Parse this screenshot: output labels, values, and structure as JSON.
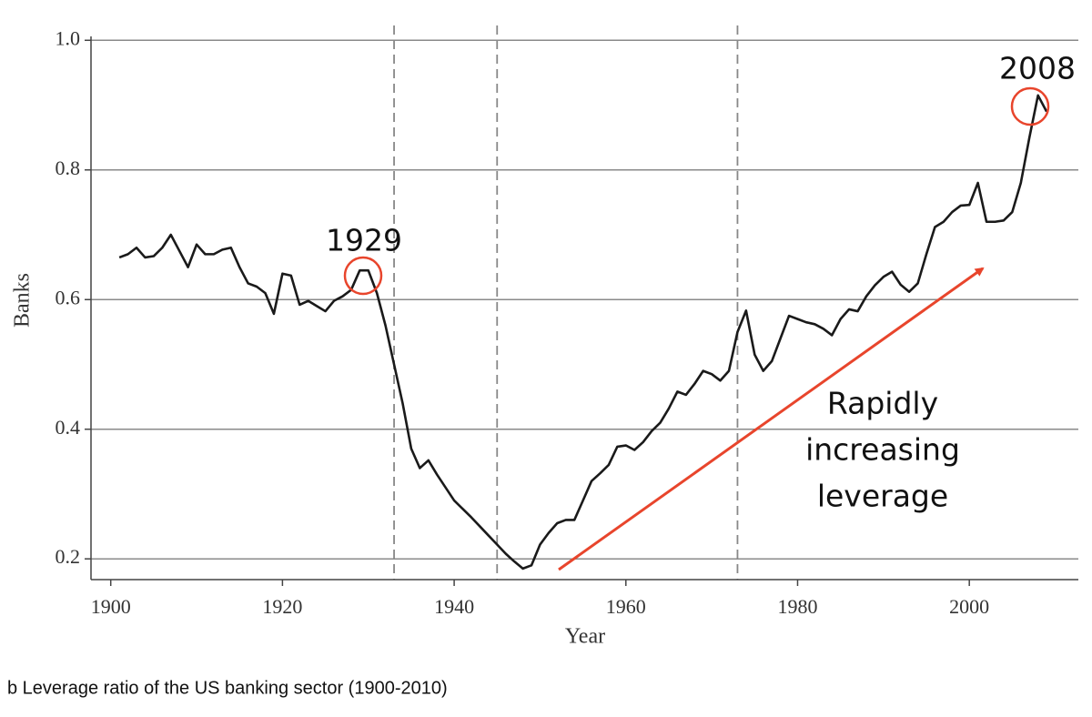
{
  "chart_data": {
    "type": "line",
    "x": [
      1901,
      1902,
      1903,
      1904,
      1905,
      1906,
      1907,
      1908,
      1909,
      1910,
      1911,
      1912,
      1913,
      1914,
      1915,
      1916,
      1917,
      1918,
      1919,
      1920,
      1921,
      1922,
      1923,
      1924,
      1925,
      1926,
      1927,
      1928,
      1929,
      1930,
      1931,
      1932,
      1933,
      1934,
      1935,
      1936,
      1937,
      1938,
      1939,
      1940,
      1941,
      1942,
      1943,
      1944,
      1945,
      1946,
      1947,
      1948,
      1949,
      1950,
      1951,
      1952,
      1953,
      1954,
      1955,
      1956,
      1957,
      1958,
      1959,
      1960,
      1961,
      1962,
      1963,
      1964,
      1965,
      1966,
      1967,
      1968,
      1969,
      1970,
      1971,
      1972,
      1973,
      1974,
      1975,
      1976,
      1977,
      1978,
      1979,
      1980,
      1981,
      1982,
      1983,
      1984,
      1985,
      1986,
      1987,
      1988,
      1989,
      1990,
      1991,
      1992,
      1993,
      1994,
      1995,
      1996,
      1997,
      1998,
      1999,
      2000,
      2001,
      2002,
      2003,
      2004,
      2005,
      2006,
      2007,
      2008,
      2009
    ],
    "values": [
      0.665,
      0.67,
      0.68,
      0.665,
      0.667,
      0.68,
      0.7,
      0.675,
      0.65,
      0.685,
      0.67,
      0.67,
      0.677,
      0.68,
      0.65,
      0.625,
      0.62,
      0.61,
      0.578,
      0.64,
      0.637,
      0.592,
      0.598,
      0.59,
      0.582,
      0.598,
      0.605,
      0.615,
      0.645,
      0.645,
      0.61,
      0.56,
      0.5,
      0.44,
      0.37,
      0.34,
      0.352,
      0.33,
      0.31,
      0.29,
      0.277,
      0.264,
      0.25,
      0.236,
      0.222,
      0.208,
      0.196,
      0.185,
      0.19,
      0.222,
      0.24,
      0.255,
      0.26,
      0.26,
      0.29,
      0.32,
      0.332,
      0.345,
      0.373,
      0.375,
      0.368,
      0.38,
      0.397,
      0.41,
      0.432,
      0.458,
      0.453,
      0.47,
      0.49,
      0.485,
      0.475,
      0.49,
      0.55,
      0.583,
      0.515,
      0.49,
      0.505,
      0.54,
      0.575,
      0.57,
      0.565,
      0.562,
      0.555,
      0.545,
      0.57,
      0.585,
      0.582,
      0.605,
      0.622,
      0.635,
      0.643,
      0.623,
      0.612,
      0.625,
      0.67,
      0.712,
      0.72,
      0.735,
      0.745,
      0.746,
      0.78,
      0.72,
      0.72,
      0.722,
      0.735,
      0.78,
      0.85,
      0.915,
      0.89
    ],
    "color": "#1a1a1a",
    "xlim": [
      1897.7,
      2012.7
    ],
    "ylim": [
      0.168,
      1.006
    ],
    "xticks": [
      1900,
      1920,
      1940,
      1960,
      1980,
      2000
    ],
    "yticks": [
      0.2,
      0.4,
      0.6,
      0.8,
      {
        "value": 1,
        "label": "1.0"
      }
    ],
    "grid": true,
    "vlines": [
      1933,
      1945,
      1973
    ],
    "x_label": "Year",
    "y_label": "Banks",
    "annotations": {
      "peak_1929": "1929",
      "peak_2008": "2008",
      "trend": [
        "Rapidly",
        "increasing",
        "leverage"
      ]
    },
    "caption": "b Leverage ratio of the US banking sector (1900-2010)"
  }
}
